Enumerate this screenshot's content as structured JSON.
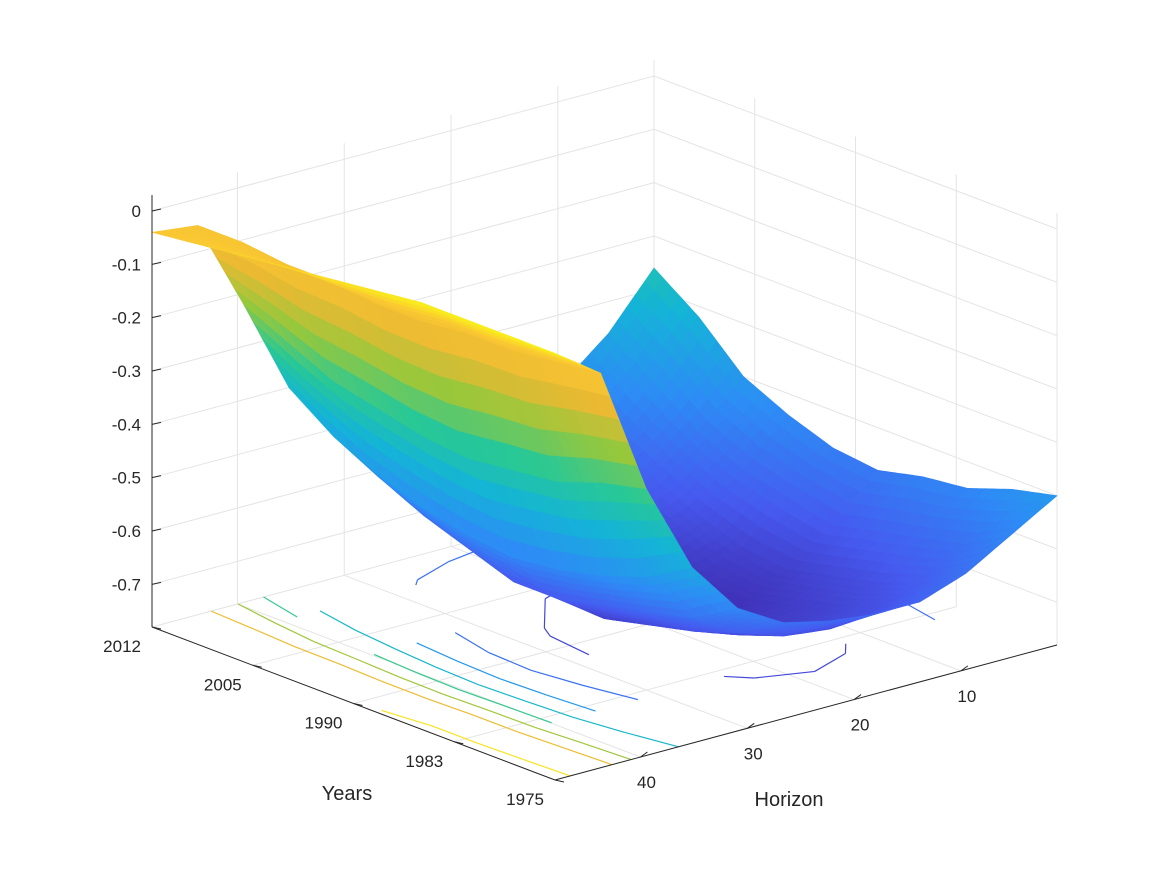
{
  "chart_data": {
    "type": "surface",
    "xlabel": "Horizon",
    "ylabel": "Years",
    "zlabel": "",
    "x_ticks": [
      10,
      20,
      30,
      40
    ],
    "y_tick_labels": [
      "1975",
      "1983",
      "1990",
      "2005",
      "2012"
    ],
    "z_ticks": [
      0,
      -0.1,
      -0.2,
      -0.3,
      -0.4,
      -0.5,
      -0.6,
      -0.7
    ],
    "x_range": [
      1,
      48
    ],
    "zlim": [
      -0.78,
      0.03
    ],
    "colormap": "parula",
    "grid": true,
    "contour_on_floor": true,
    "z_values": [
      [
        0.02,
        -0.04,
        -0.28,
        -0.45,
        -0.55,
        -0.6,
        -0.62,
        -0.63,
        -0.63,
        -0.6,
        -0.55,
        -0.5
      ],
      [
        0.02,
        -0.05,
        -0.3,
        -0.5,
        -0.6,
        -0.65,
        -0.68,
        -0.69,
        -0.68,
        -0.65,
        -0.6,
        -0.52
      ],
      [
        0.02,
        -0.06,
        -0.33,
        -0.53,
        -0.62,
        -0.68,
        -0.71,
        -0.72,
        -0.71,
        -0.68,
        -0.62,
        -0.55
      ],
      [
        0.02,
        -0.06,
        -0.34,
        -0.55,
        -0.64,
        -0.7,
        -0.73,
        -0.74,
        -0.73,
        -0.7,
        -0.64,
        -0.56
      ],
      [
        0.01,
        -0.07,
        -0.35,
        -0.56,
        -0.66,
        -0.72,
        -0.75,
        -0.77,
        -0.75,
        -0.72,
        -0.66,
        -0.58
      ],
      [
        0.0,
        -0.07,
        -0.34,
        -0.55,
        -0.66,
        -0.71,
        -0.74,
        -0.75,
        -0.74,
        -0.71,
        -0.64,
        -0.57
      ],
      [
        -0.01,
        -0.06,
        -0.32,
        -0.53,
        -0.63,
        -0.68,
        -0.71,
        -0.72,
        -0.71,
        -0.68,
        -0.62,
        -0.54
      ],
      [
        -0.02,
        -0.06,
        -0.3,
        -0.5,
        -0.6,
        -0.65,
        -0.68,
        -0.69,
        -0.68,
        -0.64,
        -0.58,
        -0.5
      ],
      [
        -0.03,
        -0.05,
        -0.26,
        -0.46,
        -0.56,
        -0.61,
        -0.63,
        -0.64,
        -0.63,
        -0.6,
        -0.52,
        -0.42
      ],
      [
        -0.04,
        -0.05,
        -0.22,
        -0.4,
        -0.5,
        -0.55,
        -0.57,
        -0.58,
        -0.57,
        -0.53,
        -0.46,
        -0.36
      ]
    ]
  }
}
